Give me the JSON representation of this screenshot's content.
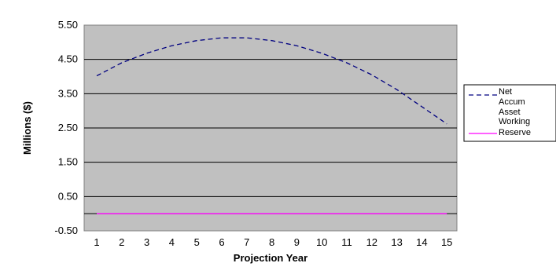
{
  "chart_data": {
    "type": "line",
    "xlabel": "Projection Year",
    "ylabel": "Millions ($)",
    "x": [
      1,
      2,
      3,
      4,
      5,
      6,
      7,
      8,
      9,
      10,
      11,
      12,
      13,
      14,
      15
    ],
    "x_tick_labels": [
      "1",
      "2",
      "3",
      "4",
      "5",
      "6",
      "7",
      "8",
      "9",
      "10",
      "11",
      "12",
      "13",
      "14",
      "15"
    ],
    "y_tick_labels": [
      "5.50",
      "4.50",
      "3.50",
      "2.50",
      "1.50",
      "0.50",
      "-0.50"
    ],
    "y_ticks": [
      5.5,
      4.5,
      3.5,
      2.5,
      1.5,
      0.5,
      -0.5
    ],
    "ylim": [
      -0.5,
      5.5
    ],
    "grid": true,
    "legend_position": "right",
    "series": [
      {
        "name": "Net Accum Asset",
        "name_lines": [
          "Net",
          "Accum",
          "Asset"
        ],
        "values": [
          4.02,
          4.4,
          4.68,
          4.9,
          5.05,
          5.13,
          5.13,
          5.05,
          4.9,
          4.68,
          4.4,
          4.05,
          3.62,
          3.12,
          2.62
        ],
        "color": "#000080",
        "style": "dashed"
      },
      {
        "name": "Working Reserve",
        "name_lines": [
          "Working",
          "Reserve"
        ],
        "values": [
          0,
          0,
          0,
          0,
          0,
          0,
          0,
          0,
          0,
          0,
          0,
          0,
          0,
          0,
          0
        ],
        "color": "#ff00ff",
        "style": "solid"
      }
    ],
    "colors": {
      "plot_background": "#c0c0c0",
      "gridline": "#000000",
      "legend_border": "#000000"
    }
  }
}
